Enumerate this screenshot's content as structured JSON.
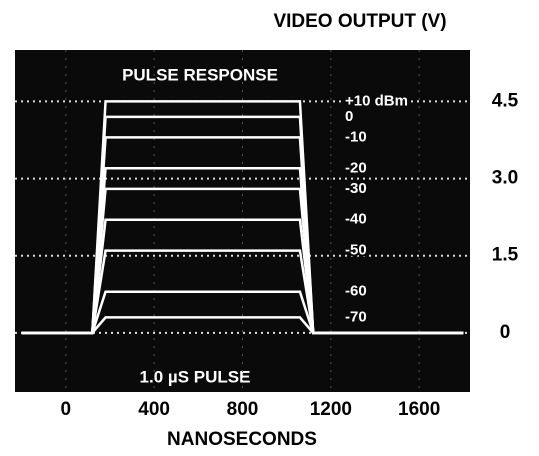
{
  "chart_data": {
    "type": "line",
    "title": "VIDEO OUTPUT (V)",
    "x_label": "NANOSECONDS",
    "annotations": [
      "PULSE RESPONSE",
      "1.0 µS PULSE"
    ],
    "x": [
      -200,
      120,
      180,
      1060,
      1120,
      1800
    ],
    "series": [
      {
        "name": "+10 dBm",
        "color": "#ffffff",
        "values": [
          0,
          0,
          4.5,
          4.5,
          0,
          0
        ]
      },
      {
        "name": "0",
        "color": "#ffffff",
        "values": [
          0,
          0,
          4.2,
          4.2,
          0,
          0
        ]
      },
      {
        "name": "-10",
        "color": "#ffffff",
        "values": [
          0,
          0,
          3.8,
          3.8,
          0,
          0
        ]
      },
      {
        "name": "-20",
        "color": "#ffffff",
        "values": [
          0,
          0,
          3.2,
          3.2,
          0,
          0
        ]
      },
      {
        "name": "-30",
        "color": "#ffffff",
        "values": [
          0,
          0,
          2.8,
          2.8,
          0,
          0
        ]
      },
      {
        "name": "-40",
        "color": "#ffffff",
        "values": [
          0,
          0,
          2.2,
          2.2,
          0,
          0
        ]
      },
      {
        "name": "-50",
        "color": "#ffffff",
        "values": [
          0,
          0,
          1.6,
          1.6,
          0,
          0
        ]
      },
      {
        "name": "-60",
        "color": "#ffffff",
        "values": [
          0,
          0,
          0.8,
          0.8,
          0,
          0
        ]
      },
      {
        "name": "-70",
        "color": "#ffffff",
        "values": [
          0,
          0,
          0.3,
          0.3,
          0,
          0
        ]
      }
    ],
    "xlim": [
      -230,
      1830
    ],
    "ylim": [
      -1.15,
      5.5
    ],
    "xticks": [
      0,
      400,
      800,
      1200,
      1600
    ],
    "yticks": [
      0,
      1.5,
      {
        "value": 3,
        "label": "3.0"
      },
      4.5
    ],
    "grid": true
  }
}
